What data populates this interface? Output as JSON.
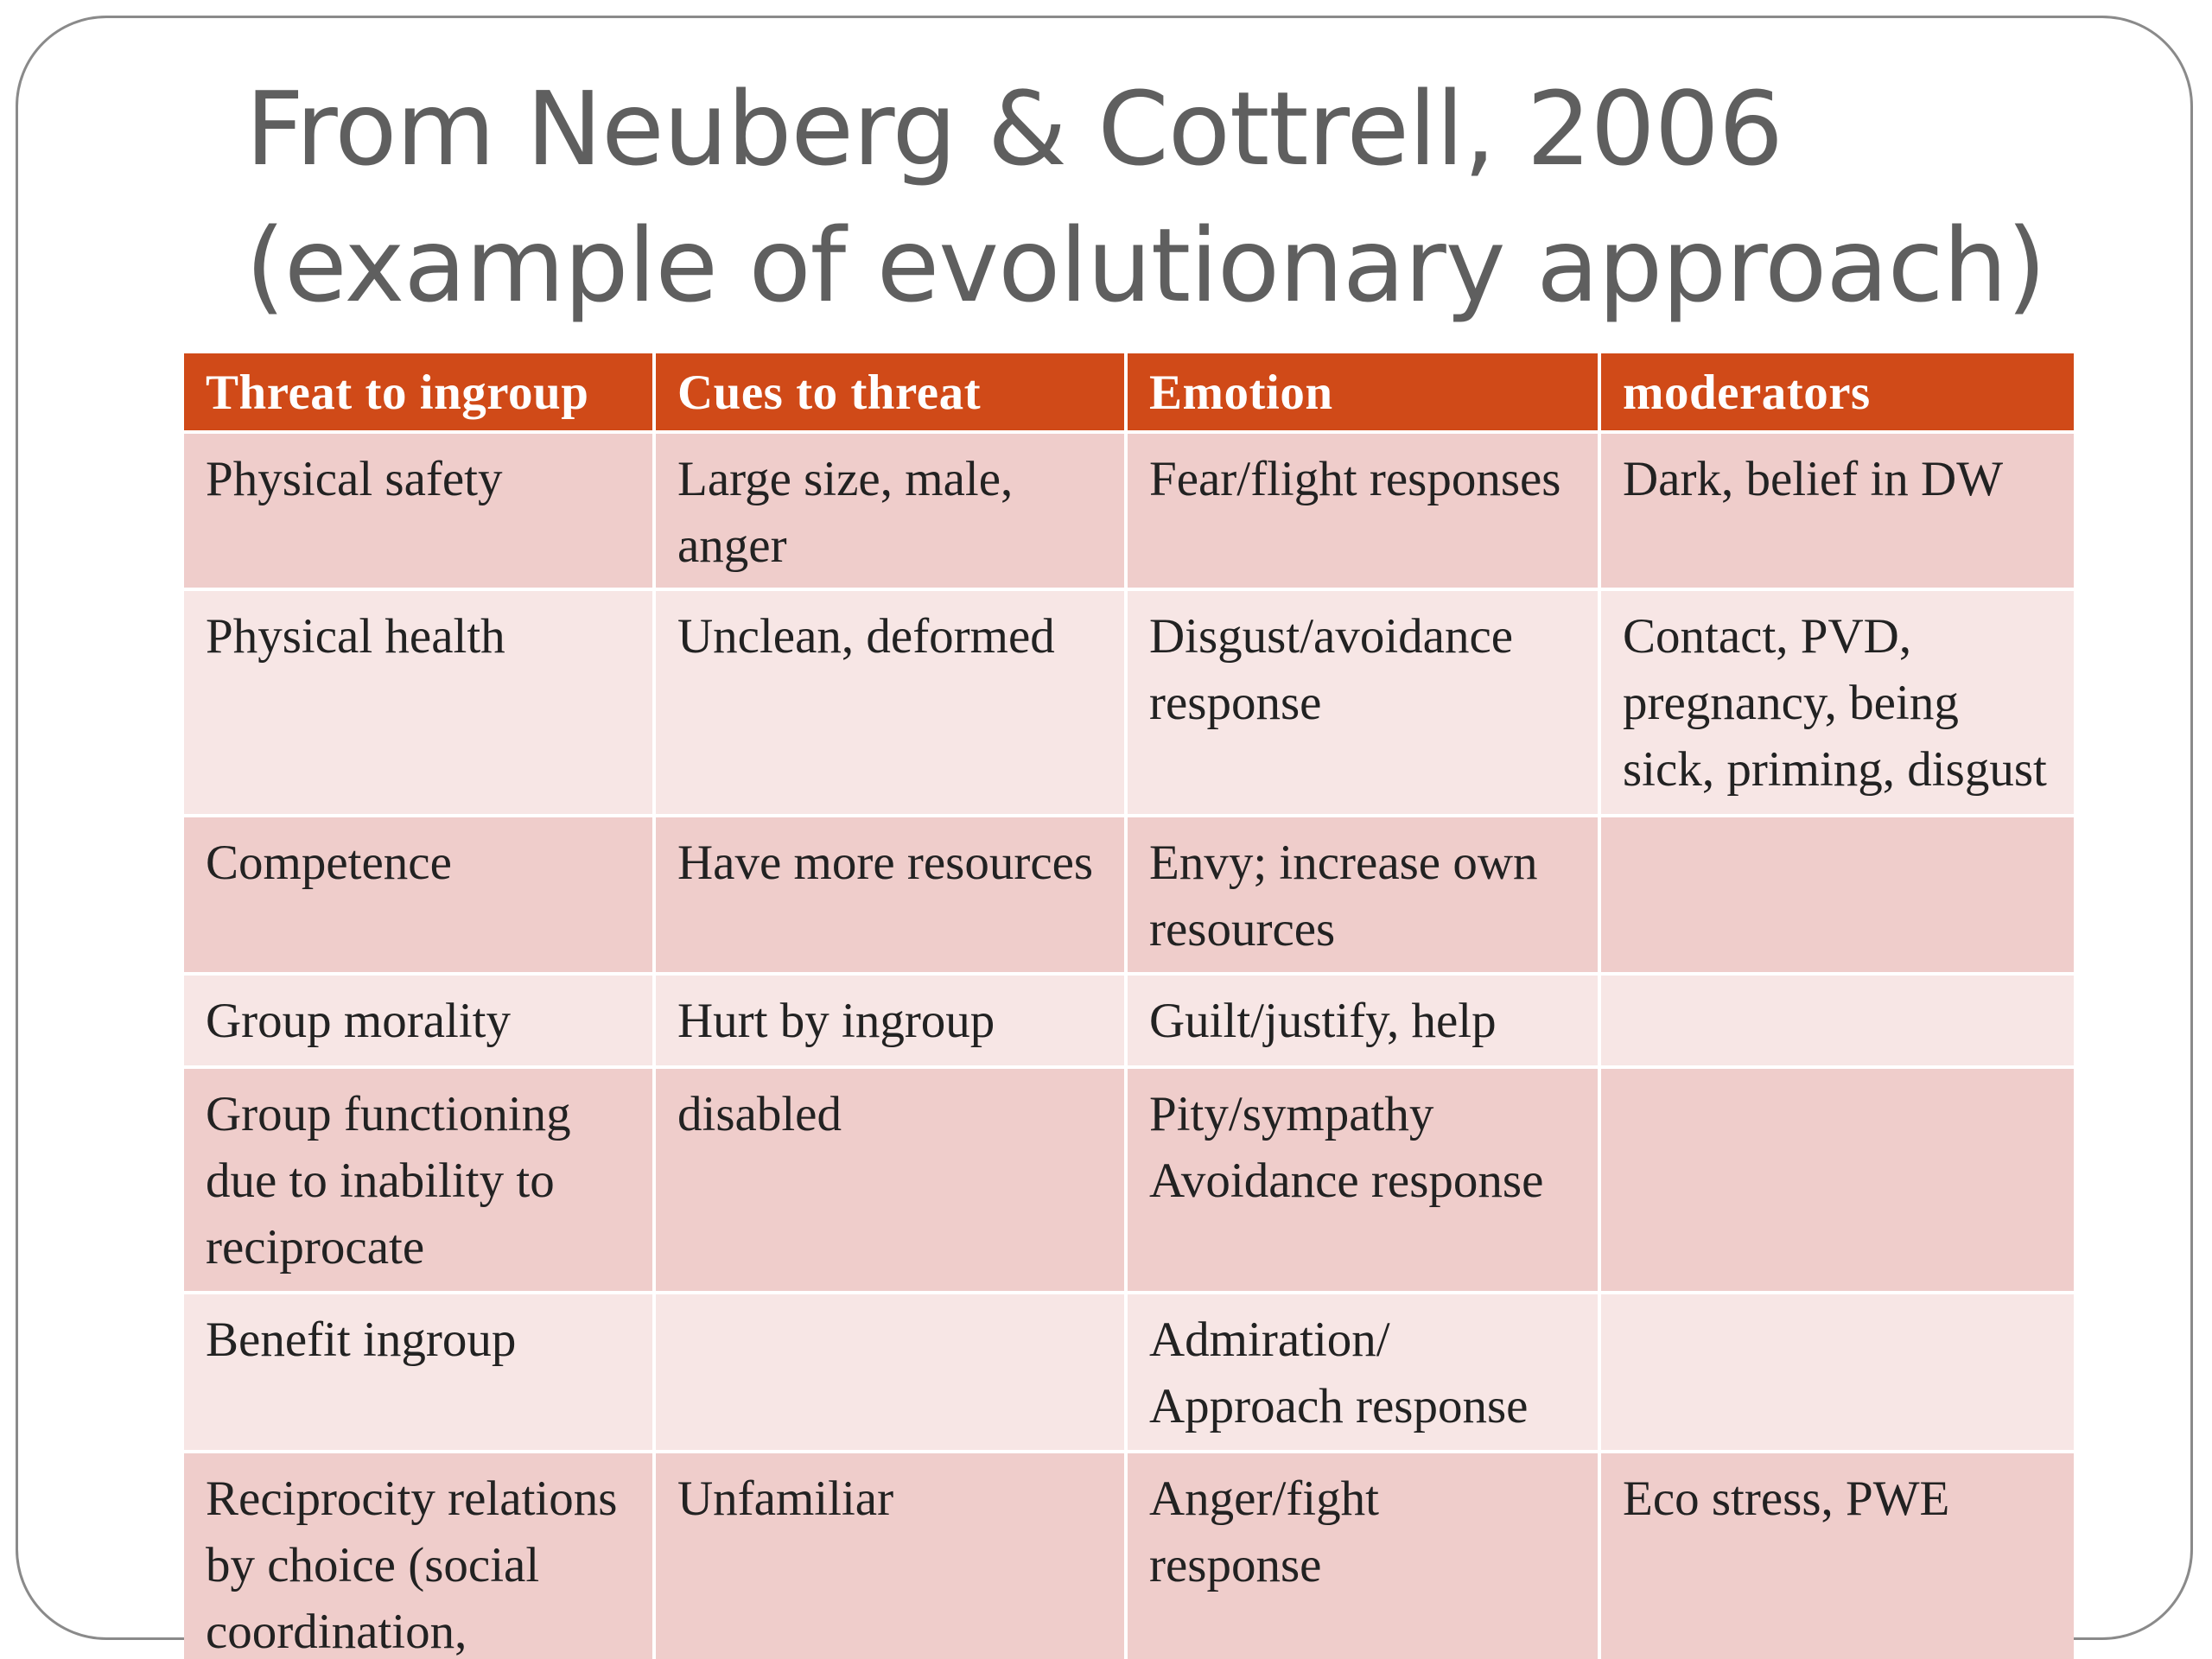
{
  "slide": {
    "title_line1": "From Neuberg & Cottrell, 2006",
    "title_line2": "(example of evolutionary approach)"
  },
  "table": {
    "headers": [
      "Threat to ingroup",
      "Cues to threat",
      "Emotion",
      "moderators"
    ],
    "rows": [
      [
        "Physical safety",
        "Large size, male,\nanger",
        "Fear/flight responses",
        "Dark, belief in DW"
      ],
      [
        "Physical health",
        "Unclean, deformed",
        "Disgust/avoidance\nresponse",
        "Contact, PVD,\npregnancy, being\nsick, priming, disgust"
      ],
      [
        "Competence",
        "Have more resources",
        "Envy; increase own\nresources",
        ""
      ],
      [
        "Group morality",
        "Hurt by ingroup",
        "Guilt/justify, help",
        ""
      ],
      [
        "Group functioning\ndue to inability to\nreciprocate",
        "disabled",
        "Pity/sympathy\nAvoidance response",
        ""
      ],
      [
        "Benefit ingroup",
        "",
        "Admiration/\nApproach response",
        ""
      ],
      [
        "Reciprocity relations\nby choice (social\ncoordination,",
        "Unfamiliar",
        "Anger/fight\nresponse",
        "Eco stress, PWE"
      ]
    ]
  },
  "colors": {
    "header_bg": "#d04a18",
    "row_dark": "#efcdcb",
    "row_light": "#f7e6e5",
    "title_text": "#5f5f5f"
  }
}
